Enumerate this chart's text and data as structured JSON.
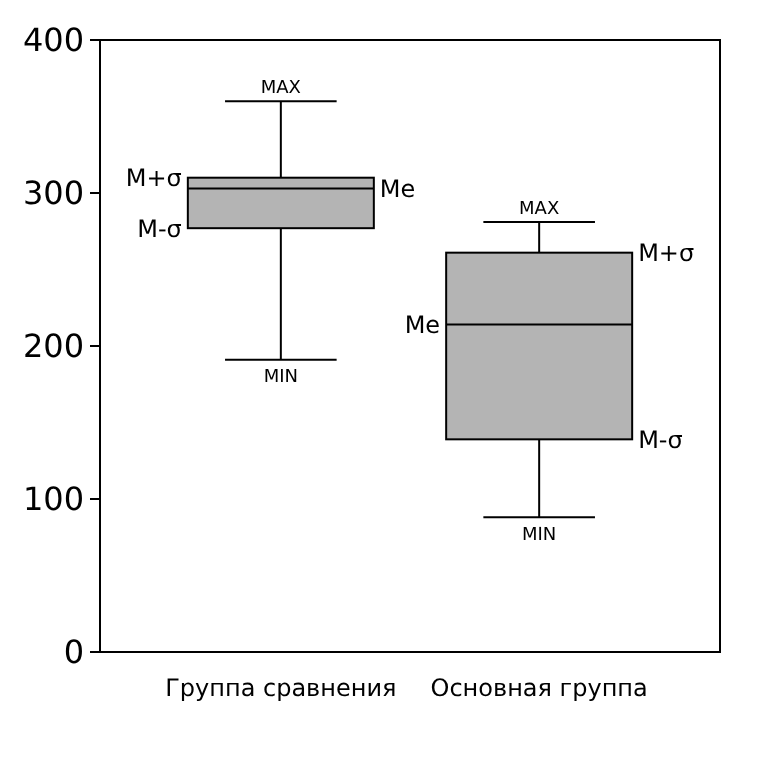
{
  "chart_data": {
    "type": "box",
    "categories": [
      "Группа сравнения",
      "Основная группа"
    ],
    "color": "#b4b4b4",
    "boxes": [
      {
        "low": 191,
        "q1": 277,
        "median": 303,
        "q3": 310,
        "high": 360
      },
      {
        "low": 88,
        "q1": 139,
        "median": 214,
        "q3": 261,
        "high": 281
      }
    ],
    "ylim": [
      0,
      400
    ],
    "yticks": [
      0,
      100,
      200,
      300,
      400
    ],
    "grid": false,
    "annotations": [
      {
        "text": "MAX",
        "x": "Группа сравнения",
        "y": 360
      },
      "M+σ",
      "Me",
      "M-σ",
      {
        "text": "MIN",
        "x": "Группа сравнения",
        "y": 191
      },
      {
        "text": "MAX",
        "x": "Основная группа",
        "y": 281
      },
      "M+σ",
      "Me",
      "M-σ",
      {
        "text": "MIN",
        "x": "Основная группа",
        "y": 88
      }
    ]
  }
}
